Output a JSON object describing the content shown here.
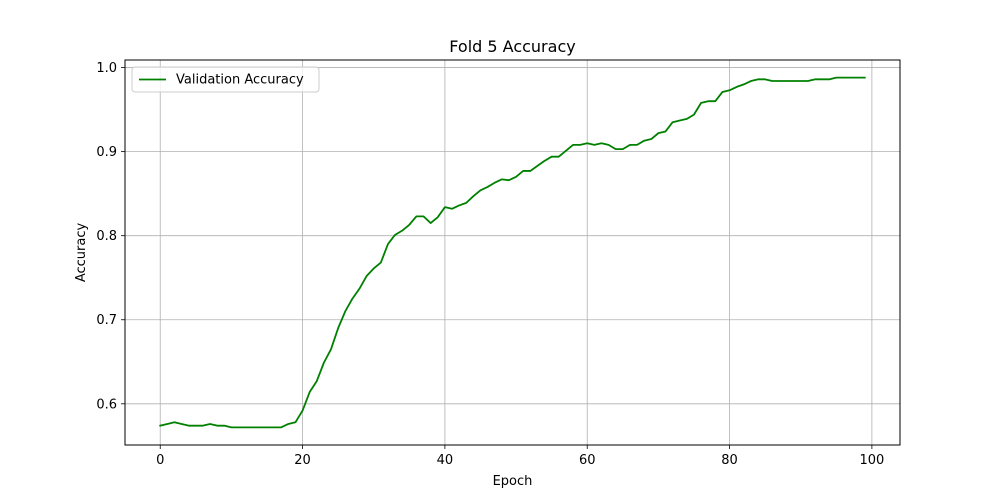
{
  "chart_data": {
    "type": "line",
    "title": "Fold 5 Accuracy",
    "xlabel": "Epoch",
    "ylabel": "Accuracy",
    "xlim": [
      -4.95,
      103.95
    ],
    "ylim": [
      0.551,
      1.009
    ],
    "xticks": [
      0,
      20,
      40,
      60,
      80,
      100
    ],
    "xtick_labels": [
      "0",
      "20",
      "40",
      "60",
      "80",
      "100"
    ],
    "yticks": [
      0.6,
      0.7,
      0.8,
      0.9,
      1.0
    ],
    "ytick_labels": [
      "0.6",
      "0.7",
      "0.8",
      "0.9",
      "1.0"
    ],
    "grid": true,
    "legend_position": "upper-left",
    "series": [
      {
        "name": "Validation Accuracy",
        "color": "#008000",
        "x": [
          0,
          1,
          2,
          3,
          4,
          5,
          6,
          7,
          8,
          9,
          10,
          11,
          12,
          13,
          14,
          15,
          16,
          17,
          18,
          19,
          20,
          21,
          22,
          23,
          24,
          25,
          26,
          27,
          28,
          29,
          30,
          31,
          32,
          33,
          34,
          35,
          36,
          37,
          38,
          39,
          40,
          41,
          42,
          43,
          44,
          45,
          46,
          47,
          48,
          49,
          50,
          51,
          52,
          53,
          54,
          55,
          56,
          57,
          58,
          59,
          60,
          61,
          62,
          63,
          64,
          65,
          66,
          67,
          68,
          69,
          70,
          71,
          72,
          73,
          74,
          75,
          76,
          77,
          78,
          79,
          80,
          81,
          82,
          83,
          84,
          85,
          86,
          87,
          88,
          89,
          90,
          91,
          92,
          93,
          94,
          95,
          96,
          97,
          98,
          99
        ],
        "values": [
          0.574,
          0.576,
          0.578,
          0.576,
          0.574,
          0.574,
          0.574,
          0.576,
          0.574,
          0.574,
          0.572,
          0.572,
          0.572,
          0.572,
          0.572,
          0.572,
          0.572,
          0.572,
          0.576,
          0.578,
          0.592,
          0.614,
          0.627,
          0.649,
          0.665,
          0.69,
          0.71,
          0.725,
          0.737,
          0.752,
          0.761,
          0.768,
          0.79,
          0.801,
          0.806,
          0.813,
          0.823,
          0.823,
          0.815,
          0.822,
          0.834,
          0.832,
          0.836,
          0.839,
          0.847,
          0.854,
          0.858,
          0.863,
          0.867,
          0.866,
          0.87,
          0.877,
          0.877,
          0.883,
          0.889,
          0.894,
          0.894,
          0.901,
          0.908,
          0.908,
          0.91,
          0.908,
          0.91,
          0.908,
          0.903,
          0.903,
          0.908,
          0.908,
          0.913,
          0.915,
          0.922,
          0.924,
          0.935,
          0.937,
          0.939,
          0.944,
          0.958,
          0.96,
          0.96,
          0.971,
          0.973,
          0.977,
          0.98,
          0.984,
          0.986,
          0.986,
          0.984,
          0.984,
          0.984,
          0.984,
          0.984,
          0.984,
          0.986,
          0.986,
          0.986,
          0.988,
          0.988,
          0.988,
          0.988,
          0.988
        ]
      }
    ]
  }
}
